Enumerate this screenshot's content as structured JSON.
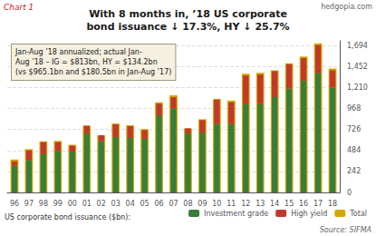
{
  "chart_data": {
    "type": "bar",
    "title": "With 8 months in, ’18 US corporate\nbond issuance ↓ 17.3%, HY ↓ 25.7%",
    "chart_label": "Chart 1",
    "brand": "hedgopia.com",
    "annotation": "Jan-Aug ’18 annualized; actual Jan-\nAug ’18 – IG = $813bn, HY = $134.2bn\n(vs $965.1bn and $180.5bn in Jan-Aug ’17)",
    "ylabel": "US corporate bond issuance ($bn):",
    "source": "Source: SIFMA",
    "categories": [
      "96",
      "97",
      "98",
      "99",
      "00",
      "01",
      "02",
      "03",
      "04",
      "05",
      "06",
      "07",
      "08",
      "09",
      "10",
      "11",
      "12",
      "13",
      "14",
      "15",
      "16",
      "17",
      "18"
    ],
    "series": [
      {
        "name": "Investment grade",
        "color": "#3a7d3a",
        "stacked": true,
        "values": [
          310,
          375,
          440,
          480,
          470,
          680,
          590,
          640,
          630,
          620,
          890,
          970,
          680,
          690,
          790,
          790,
          1020,
          1020,
          1100,
          1200,
          1290,
          1380,
          1210
        ]
      },
      {
        "name": "High yield",
        "color": "#c0392b",
        "stacked": true,
        "values": [
          50,
          110,
          140,
          100,
          70,
          90,
          70,
          145,
          135,
          100,
          135,
          130,
          60,
          145,
          280,
          250,
          330,
          340,
          300,
          280,
          260,
          320,
          200
        ]
      },
      {
        "name": "Total",
        "color": "#d4a800",
        "stacked": false,
        "values": [
          380,
          500,
          590,
          595,
          550,
          770,
          660,
          795,
          775,
          730,
          1040,
          1120,
          740,
          845,
          1080,
          1060,
          1370,
          1380,
          1410,
          1490,
          1570,
          1720,
          1430
        ]
      }
    ],
    "ylim": [
      0,
      1750
    ],
    "yticks": [
      0,
      242,
      484,
      726,
      968,
      {
        "value": 1210,
        "label": "1,210"
      },
      {
        "value": 1452,
        "label": "1,452"
      },
      {
        "value": 1694,
        "label": "1,694"
      }
    ],
    "grid": true,
    "legend": "lower right"
  }
}
